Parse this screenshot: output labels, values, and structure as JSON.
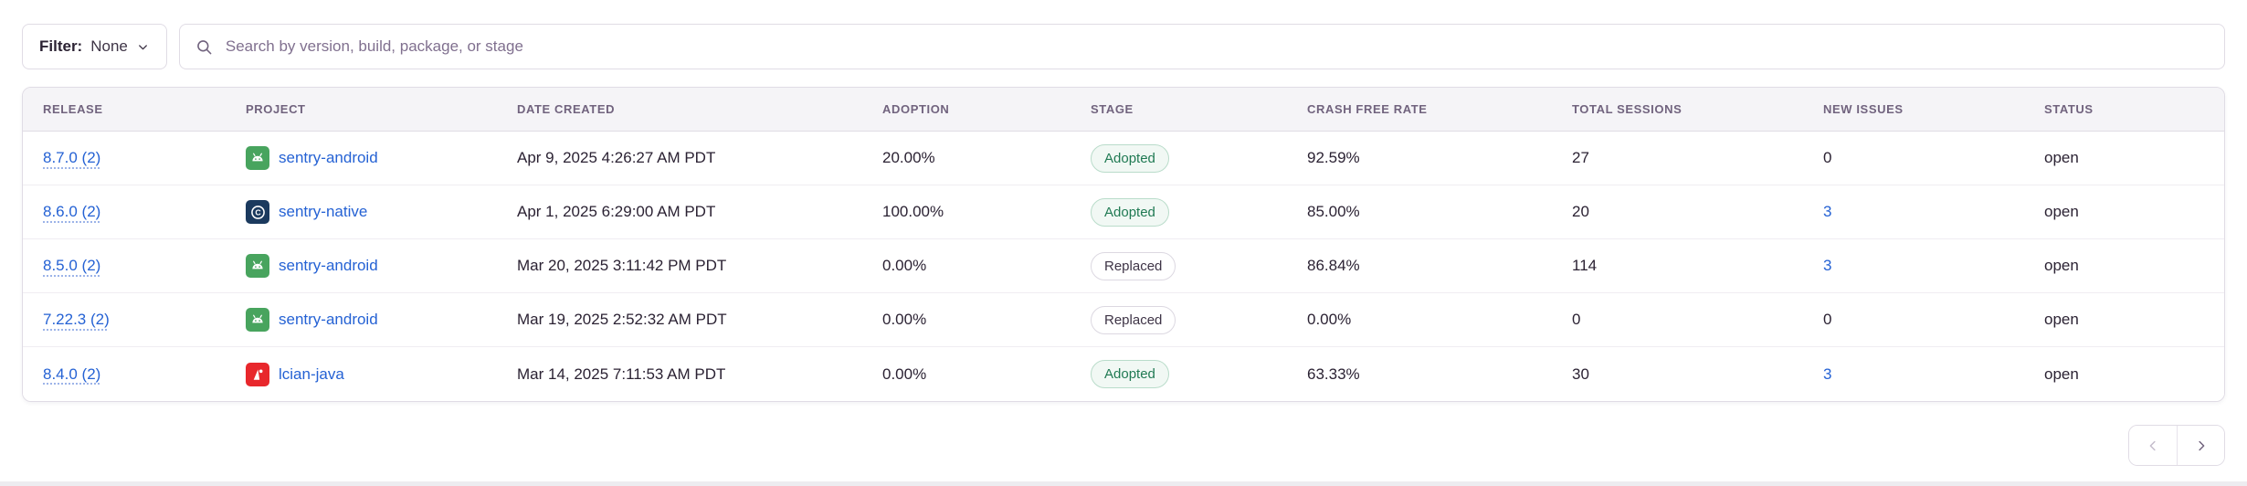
{
  "filter": {
    "label": "Filter:",
    "value": "None"
  },
  "search": {
    "placeholder": "Search by version, build, package, or stage"
  },
  "table": {
    "columns": [
      "Release",
      "Project",
      "Date Created",
      "Adoption",
      "Stage",
      "Crash Free Rate",
      "Total Sessions",
      "New Issues",
      "Status"
    ],
    "rows": [
      {
        "release": "8.7.0 (2)",
        "platform": "android",
        "project": "sentry-android",
        "date_created": "Apr 9, 2025 4:26:27 AM PDT",
        "adoption": "20.00%",
        "stage": "Adopted",
        "crash_free_rate": "92.59%",
        "total_sessions": "27",
        "new_issues": "0",
        "new_issues_is_link": false,
        "status": "open"
      },
      {
        "release": "8.6.0 (2)",
        "platform": "c",
        "project": "sentry-native",
        "date_created": "Apr 1, 2025 6:29:00 AM PDT",
        "adoption": "100.00%",
        "stage": "Adopted",
        "crash_free_rate": "85.00%",
        "total_sessions": "20",
        "new_issues": "3",
        "new_issues_is_link": true,
        "status": "open"
      },
      {
        "release": "8.5.0 (2)",
        "platform": "android",
        "project": "sentry-android",
        "date_created": "Mar 20, 2025 3:11:42 PM PDT",
        "adoption": "0.00%",
        "stage": "Replaced",
        "crash_free_rate": "86.84%",
        "total_sessions": "114",
        "new_issues": "3",
        "new_issues_is_link": true,
        "status": "open"
      },
      {
        "release": "7.22.3 (2)",
        "platform": "android",
        "project": "sentry-android",
        "date_created": "Mar 19, 2025 2:52:32 AM PDT",
        "adoption": "0.00%",
        "stage": "Replaced",
        "crash_free_rate": "0.00%",
        "total_sessions": "0",
        "new_issues": "0",
        "new_issues_is_link": false,
        "status": "open"
      },
      {
        "release": "8.4.0 (2)",
        "platform": "java",
        "project": "lcian-java",
        "date_created": "Mar 14, 2025 7:11:53 AM PDT",
        "adoption": "0.00%",
        "stage": "Adopted",
        "crash_free_rate": "63.33%",
        "total_sessions": "30",
        "new_issues": "3",
        "new_issues_is_link": true,
        "status": "open"
      }
    ]
  },
  "icons": {
    "search": "magnifier",
    "filter_chevron": "chevron-down",
    "platform_android": "android-robot",
    "platform_c": "c-language",
    "platform_java": "java-duke",
    "pagination_prev": "chevron-left",
    "pagination_next": "chevron-right"
  },
  "colors": {
    "link": "#2562d4",
    "adopted_text": "#207a53",
    "adopted_bg": "#f1f8f4",
    "adopted_border": "#b9dcca",
    "replaced_border": "#dcd8e1",
    "android_green": "#48a45e",
    "c_navy": "#1b3a5e",
    "java_red": "#e8272c",
    "header_bg": "#f5f4f7",
    "border": "#e0dce5"
  }
}
